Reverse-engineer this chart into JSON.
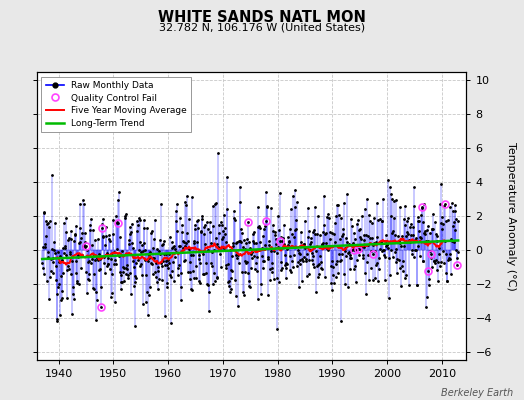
{
  "title": "WHITE SANDS NATL MON",
  "subtitle": "32.782 N, 106.176 W (United States)",
  "ylabel": "Temperature Anomaly (°C)",
  "credit": "Berkeley Earth",
  "start_year": 1937,
  "end_year": 2013,
  "ylim": [
    -6.5,
    10.5
  ],
  "yticks": [
    -6,
    -4,
    -2,
    0,
    2,
    4,
    6,
    8,
    10
  ],
  "xticks": [
    1940,
    1950,
    1960,
    1970,
    1980,
    1990,
    2000,
    2010
  ],
  "fig_background": "#e8e8e8",
  "plot_background": "#ffffff",
  "raw_color": "#0000ff",
  "raw_dot_color": "#000000",
  "qc_color": "#ff44ff",
  "moving_avg_color": "#ff0000",
  "trend_color": "#00bb00",
  "grid_color": "#c8c8c8",
  "grid_style": "--",
  "seed": 12345
}
